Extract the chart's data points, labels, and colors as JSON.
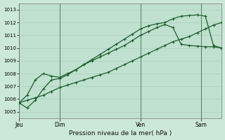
{
  "xlabel": "Pression niveau de la mer( hPa )",
  "bg_color": "#cce8d8",
  "plot_bg_color": "#c0e0d0",
  "line_color": "#1a5e28",
  "ylim": [
    1004.5,
    1013.5
  ],
  "yticks": [
    1005,
    1006,
    1007,
    1008,
    1009,
    1010,
    1011,
    1012,
    1013
  ],
  "xlim": [
    0,
    1
  ],
  "day_positions": [
    0.0,
    0.2,
    0.6,
    0.9
  ],
  "day_labels": [
    "Jeu",
    "Dim",
    "Ven",
    "Sam"
  ],
  "line1_x": [
    0.0,
    0.04,
    0.08,
    0.12,
    0.16,
    0.2,
    0.24,
    0.28,
    0.32,
    0.36,
    0.4,
    0.44,
    0.48,
    0.52,
    0.56,
    0.6,
    0.64,
    0.68,
    0.72,
    0.76,
    0.8,
    0.84,
    0.88,
    0.92,
    0.96,
    1.0
  ],
  "line1_y": [
    1005.7,
    1005.9,
    1006.1,
    1006.3,
    1006.6,
    1006.9,
    1007.1,
    1007.3,
    1007.5,
    1007.7,
    1007.9,
    1008.1,
    1008.4,
    1008.7,
    1009.0,
    1009.3,
    1009.6,
    1009.9,
    1010.2,
    1010.5,
    1010.7,
    1010.9,
    1011.2,
    1011.5,
    1011.8,
    1012.0
  ],
  "line2_x": [
    0.0,
    0.04,
    0.08,
    0.12,
    0.16,
    0.2,
    0.24,
    0.28,
    0.32,
    0.36,
    0.4,
    0.44,
    0.48,
    0.52,
    0.56,
    0.6,
    0.64,
    0.68,
    0.72,
    0.76,
    0.8,
    0.84,
    0.88,
    0.92,
    0.96,
    1.0
  ],
  "line2_y": [
    1005.7,
    1006.3,
    1007.5,
    1008.0,
    1007.8,
    1007.7,
    1008.0,
    1008.3,
    1008.7,
    1009.0,
    1009.3,
    1009.6,
    1009.9,
    1010.2,
    1010.6,
    1011.0,
    1011.3,
    1011.6,
    1011.85,
    1011.6,
    1010.3,
    1010.2,
    1010.15,
    1010.1,
    1010.1,
    1010.0
  ],
  "line3_x": [
    0.0,
    0.04,
    0.08,
    0.12,
    0.16,
    0.2,
    0.24,
    0.28,
    0.32,
    0.36,
    0.4,
    0.44,
    0.48,
    0.52,
    0.56,
    0.6,
    0.64,
    0.68,
    0.72,
    0.76,
    0.8,
    0.84,
    0.88,
    0.92,
    0.96,
    1.0
  ],
  "line3_y": [
    1005.7,
    1005.3,
    1005.9,
    1006.8,
    1007.5,
    1007.6,
    1007.9,
    1008.3,
    1008.7,
    1009.1,
    1009.5,
    1009.9,
    1010.3,
    1010.7,
    1011.1,
    1011.5,
    1011.75,
    1011.9,
    1012.0,
    1012.3,
    1012.5,
    1012.55,
    1012.6,
    1012.5,
    1010.2,
    1010.0
  ]
}
